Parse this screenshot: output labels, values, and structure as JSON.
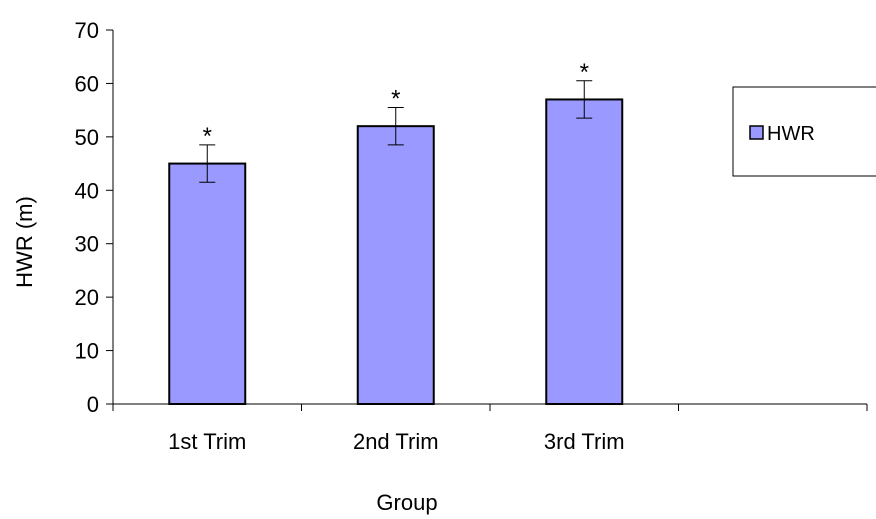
{
  "chart_data": {
    "type": "bar",
    "categories": [
      "1st Trim",
      "2nd Trim",
      "3rd Trim",
      ""
    ],
    "series": [
      {
        "name": "HWR",
        "values": [
          45,
          52,
          57,
          null
        ],
        "error": [
          3.5,
          3.5,
          3.5,
          null
        ],
        "color": "#9999ff",
        "annotations": [
          "*",
          "*",
          "*",
          ""
        ]
      }
    ],
    "xlabel": "Group",
    "ylabel": "HWR (m)",
    "ylim": [
      0,
      70
    ],
    "yticks": [
      "0",
      "10",
      "20",
      "30",
      "40",
      "50",
      "60",
      "70"
    ],
    "grid": false,
    "legend_position": "right"
  }
}
